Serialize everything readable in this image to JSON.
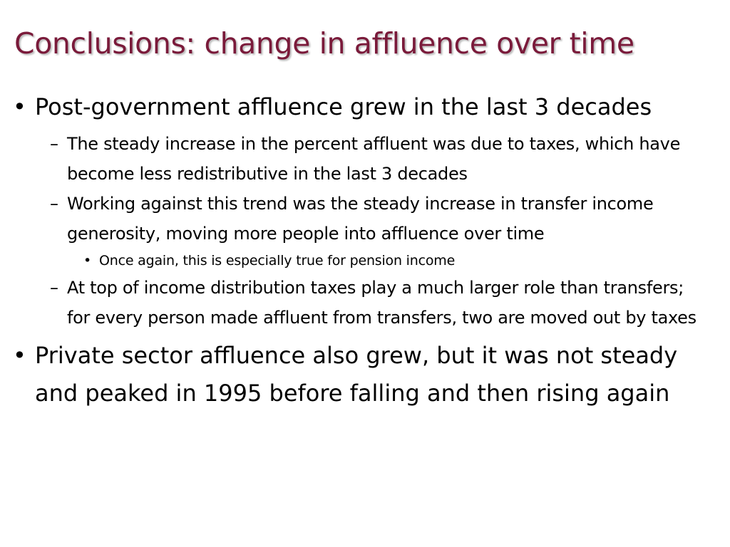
{
  "slide": {
    "title": "Conclusions: change in affluence over time",
    "title_color": "#7a1a3a",
    "bullet_symbol": "•",
    "dash_symbol": "–",
    "bullets": [
      {
        "text": "Post-government affluence grew in the last 3 decades",
        "sub": [
          {
            "text": "The steady increase in the percent affluent was due to taxes, which have become less redistributive in the last 3 decades"
          },
          {
            "text": "Working against this trend was the steady increase in transfer income generosity, moving more people into affluence over time",
            "sub": [
              {
                "text": "Once again, this is especially true for pension income"
              }
            ]
          },
          {
            "text": "At top of income distribution taxes play a much larger role than transfers; for every person made affluent from transfers, two are moved out by taxes"
          }
        ]
      },
      {
        "text": "Private sector affluence also grew, but it was not steady and peaked in 1995 before falling and then rising again"
      }
    ]
  }
}
